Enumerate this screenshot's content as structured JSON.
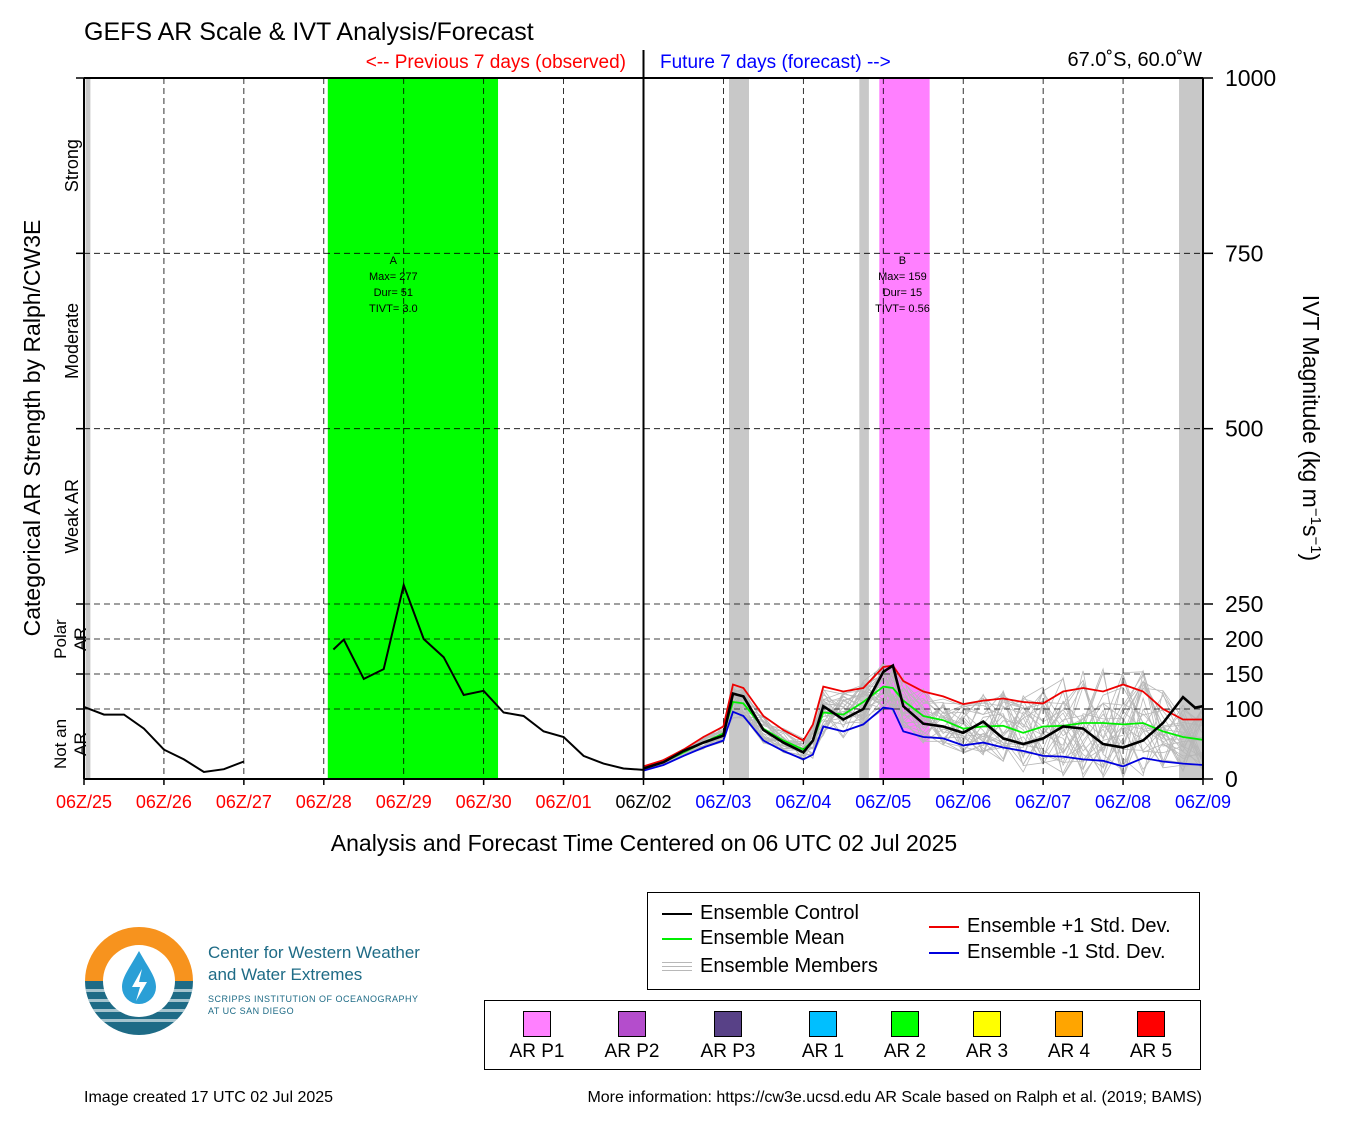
{
  "title": "GEFS AR Scale & IVT Analysis/Forecast",
  "header": {
    "previous_label": "<-- Previous 7 days (observed)",
    "future_label": "Future 7 days (forecast) -->",
    "location": "67.0˚S, 60.0˚W"
  },
  "colors": {
    "observed": "#ff0000",
    "forecast": "#0000ff",
    "control": "#000000",
    "mean": "#00ee00",
    "plus_sd": "#ee0000",
    "minus_sd": "#0000dd",
    "members": "#b8b8b8",
    "gray_band": "#c8c8c8"
  },
  "chart_data": {
    "type": "line",
    "title": "GEFS AR Scale & IVT Analysis/Forecast",
    "xlabel": "Analysis and Forecast Time Centered on 06 UTC 02 Jul 2025",
    "ylabel": "IVT Magnitude (kg m⁻¹s⁻¹)",
    "left_label": "Categorical AR Strength by Ralph/CW3E",
    "x_unit": "days relative to 06Z/02",
    "xlim": [
      -7,
      7
    ],
    "ylim": [
      0,
      1000
    ],
    "y_scale": "piecewise",
    "y_ticks": [
      0,
      100,
      150,
      200,
      250,
      500,
      750,
      1000
    ],
    "x_tick_labels": [
      {
        "label": "06Z/25",
        "x": -7,
        "color": "#ff0000"
      },
      {
        "label": "06Z/26",
        "x": -6,
        "color": "#ff0000"
      },
      {
        "label": "06Z/27",
        "x": -5,
        "color": "#ff0000"
      },
      {
        "label": "06Z/28",
        "x": -4,
        "color": "#ff0000"
      },
      {
        "label": "06Z/29",
        "x": -3,
        "color": "#ff0000"
      },
      {
        "label": "06Z/30",
        "x": -2,
        "color": "#ff0000"
      },
      {
        "label": "06Z/01",
        "x": -1,
        "color": "#ff0000"
      },
      {
        "label": "06Z/02",
        "x": 0,
        "color": "#000000"
      },
      {
        "label": "06Z/03",
        "x": 1,
        "color": "#0000ff"
      },
      {
        "label": "06Z/04",
        "x": 2,
        "color": "#0000ff"
      },
      {
        "label": "06Z/05",
        "x": 3,
        "color": "#0000ff"
      },
      {
        "label": "06Z/06",
        "x": 4,
        "color": "#0000ff"
      },
      {
        "label": "06Z/07",
        "x": 5,
        "color": "#0000ff"
      },
      {
        "label": "06Z/08",
        "x": 6,
        "color": "#0000ff"
      },
      {
        "label": "06Z/09",
        "x": 7,
        "color": "#0000ff"
      }
    ],
    "categories": [
      {
        "label": "Strong",
        "from": 750,
        "to": 1000
      },
      {
        "label": "Moderate",
        "from": 500,
        "to": 750
      },
      {
        "label": "Weak AR",
        "from": 250,
        "to": 500
      },
      {
        "label": "Polar AR",
        "from": 150,
        "to": 250
      },
      {
        "label": "Not an AR",
        "from": 0,
        "to": 100
      }
    ],
    "shaded_periods": [
      {
        "type": "AR 2",
        "start": -3.95,
        "end": -1.82,
        "color": "#00ff00"
      },
      {
        "type": "AR P1",
        "start": 2.95,
        "end": 3.58,
        "color": "#ff80ff"
      },
      {
        "type": "gray",
        "start": -6.98,
        "end": -6.92,
        "color": "#c8c8c8"
      },
      {
        "type": "gray",
        "start": 1.07,
        "end": 1.32,
        "color": "#c8c8c8"
      },
      {
        "type": "gray",
        "start": 2.7,
        "end": 2.82,
        "color": "#c8c8c8"
      },
      {
        "type": "gray",
        "start": 6.7,
        "end": 7.0,
        "color": "#c8c8c8"
      }
    ],
    "event_annotations": [
      {
        "x": -3.13,
        "lines": [
          "A",
          "Max= 277",
          "Dur= 51",
          "TIVT= 3.0"
        ]
      },
      {
        "x": 3.24,
        "lines": [
          "B",
          "Max= 159",
          "Dur= 15",
          "TIVT= 0.56"
        ]
      }
    ],
    "observed": {
      "name": "Ensemble Control",
      "x": [
        -7,
        -6.75,
        -6.5,
        -6.25,
        -6,
        -5.75,
        -5.5,
        -5.25,
        -5
      ],
      "y": [
        103,
        92,
        92,
        72,
        42,
        28,
        10,
        14,
        25
      ]
    },
    "observed_ar": {
      "x": [
        -3.88,
        -3.75,
        -3.5,
        -3.25,
        -3,
        -2.75,
        -2.5,
        -2.25,
        -2,
        -1.75,
        -1.5,
        -1.25,
        -1,
        -0.75,
        -0.5,
        -0.25,
        0
      ],
      "y": [
        185,
        199,
        143,
        157,
        277,
        200,
        174,
        120,
        126,
        95,
        90,
        68,
        60,
        33,
        22,
        15,
        13
      ]
    },
    "series": [
      {
        "name": "Ensemble Control",
        "color": "#000000",
        "x": [
          0,
          0.25,
          0.5,
          0.75,
          1,
          1.12,
          1.25,
          1.5,
          1.75,
          2,
          2.12,
          2.25,
          2.5,
          2.75,
          3,
          3.12,
          3.25,
          3.5,
          3.75,
          4,
          4.25,
          4.5,
          4.75,
          5,
          5.25,
          5.5,
          5.75,
          6,
          6.25,
          6.5,
          6.75,
          6.9,
          7
        ],
        "y": [
          15,
          24,
          40,
          52,
          62,
          122,
          118,
          70,
          52,
          38,
          55,
          104,
          85,
          100,
          153,
          162,
          104,
          79,
          75,
          66,
          82,
          58,
          50,
          58,
          75,
          72,
          50,
          45,
          55,
          80,
          117,
          102,
          104
        ]
      },
      {
        "name": "Ensemble Mean",
        "color": "#00ee00",
        "x": [
          0,
          0.25,
          0.5,
          0.75,
          1,
          1.12,
          1.25,
          1.5,
          1.75,
          2,
          2.12,
          2.25,
          2.5,
          2.75,
          3,
          3.12,
          3.25,
          3.5,
          3.75,
          4,
          4.25,
          4.5,
          4.75,
          5,
          5.25,
          5.5,
          5.75,
          6,
          6.25,
          6.5,
          6.75,
          7
        ],
        "y": [
          15,
          24,
          38,
          52,
          65,
          110,
          108,
          72,
          55,
          42,
          55,
          95,
          92,
          110,
          132,
          130,
          112,
          90,
          84,
          72,
          75,
          76,
          66,
          75,
          76,
          80,
          80,
          78,
          80,
          68,
          60,
          56
        ]
      },
      {
        "name": "Ensemble +1 Std. Dev.",
        "color": "#ee0000",
        "x": [
          0,
          0.25,
          0.5,
          0.75,
          1,
          1.12,
          1.25,
          1.5,
          1.75,
          2,
          2.12,
          2.25,
          2.5,
          2.75,
          3,
          3.12,
          3.25,
          3.5,
          3.75,
          4,
          4.25,
          4.5,
          4.75,
          5,
          5.25,
          5.5,
          5.75,
          6,
          6.25,
          6.5,
          6.75,
          7
        ],
        "y": [
          18,
          27,
          42,
          60,
          75,
          135,
          130,
          90,
          70,
          55,
          78,
          132,
          125,
          130,
          160,
          162,
          140,
          125,
          118,
          107,
          112,
          115,
          110,
          108,
          125,
          130,
          125,
          135,
          125,
          100,
          85,
          85
        ]
      },
      {
        "name": "Ensemble -1 Std. Dev.",
        "color": "#0000dd",
        "x": [
          0,
          0.25,
          0.5,
          0.75,
          1,
          1.12,
          1.25,
          1.5,
          1.75,
          2,
          2.12,
          2.25,
          2.5,
          2.75,
          3,
          3.12,
          3.25,
          3.5,
          3.75,
          4,
          4.25,
          4.5,
          4.75,
          5,
          5.25,
          5.5,
          5.75,
          6,
          6.25,
          6.5,
          6.75,
          7
        ],
        "y": [
          12,
          20,
          33,
          45,
          55,
          96,
          90,
          55,
          40,
          28,
          35,
          75,
          68,
          78,
          102,
          100,
          68,
          60,
          58,
          48,
          52,
          45,
          40,
          33,
          32,
          28,
          26,
          18,
          30,
          25,
          22,
          20
        ]
      }
    ]
  },
  "legend": {
    "control": "Ensemble Control",
    "mean": "Ensemble Mean",
    "members": "Ensemble Members",
    "plus": "Ensemble +1 Std. Dev.",
    "minus": "Ensemble -1 Std. Dev."
  },
  "ar_categories": [
    {
      "label": "AR P1",
      "color": "#ff80ff"
    },
    {
      "label": "AR P2",
      "color": "#b44dcc"
    },
    {
      "label": "AR P3",
      "color": "#584187"
    },
    {
      "label": "AR 1",
      "color": "#00bfff"
    },
    {
      "label": "AR 2",
      "color": "#00ff00"
    },
    {
      "label": "AR 3",
      "color": "#ffff00"
    },
    {
      "label": "AR 4",
      "color": "#ffa500"
    },
    {
      "label": "AR 5",
      "color": "#ff0000"
    }
  ],
  "logo": {
    "line1": "Center for Western Weather",
    "line2": "and Water Extremes",
    "line3": "SCRIPPS INSTITUTION OF OCEANOGRAPHY",
    "line4": "AT UC SAN DIEGO"
  },
  "footer": {
    "created": "Image created 17 UTC 02 Jul 2025",
    "info": "More information: https://cw3e.ucsd.edu AR Scale based on Ralph et al. (2019; BAMS)"
  }
}
